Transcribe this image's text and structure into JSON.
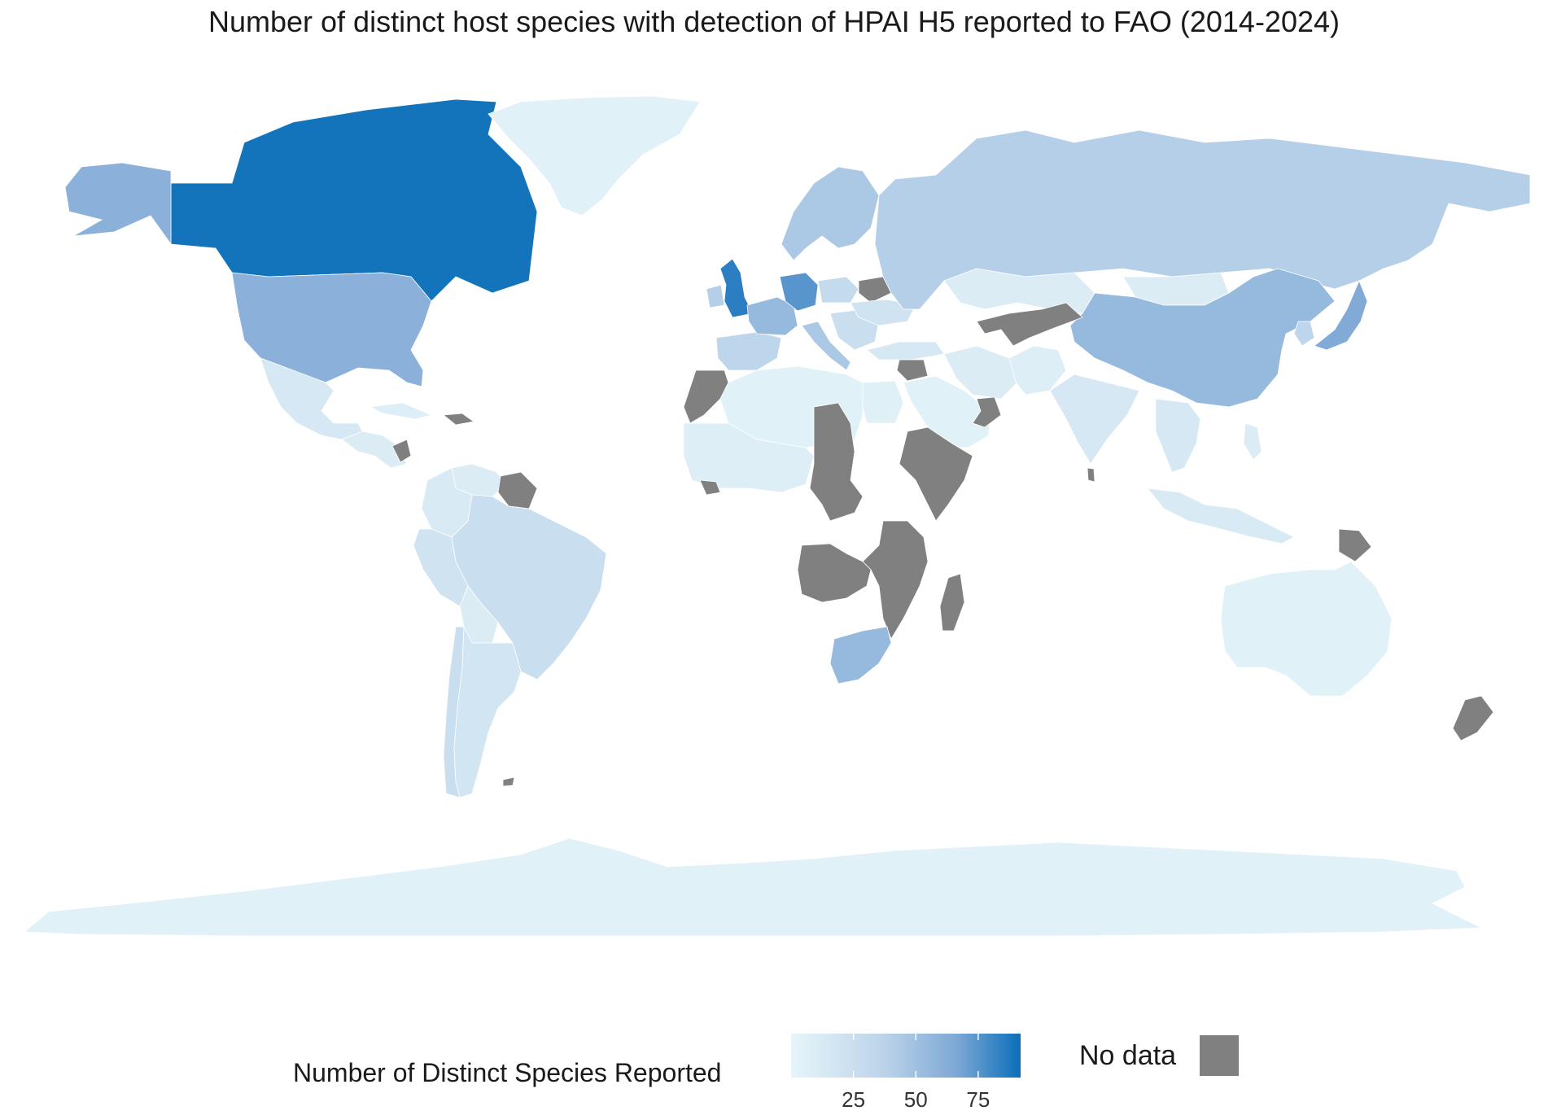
{
  "title": "Number of distinct host species with detection of HPAI H5 reported to FAO (2014-2024)",
  "legend": {
    "title": "Number of Distinct Species Reported",
    "ticks": [
      25,
      50,
      75
    ],
    "range": [
      0,
      92
    ],
    "gradient_colors": [
      "#e6f5f9",
      "#bcd4ea",
      "#7ea8d6",
      "#0a6fb9"
    ],
    "no_data_label": "No data",
    "no_data_color": "#808080"
  },
  "colors": {
    "land_lowest": "#e6f5f9",
    "no_data": "#808080",
    "ocean": "#ffffff"
  },
  "regions": [
    {
      "name": "Canada",
      "value": 90
    },
    {
      "name": "United States",
      "value": 60
    },
    {
      "name": "Alaska",
      "value": 60
    },
    {
      "name": "Greenland",
      "value": 5
    },
    {
      "name": "Mexico",
      "value": 15
    },
    {
      "name": "Central America",
      "value": 10
    },
    {
      "name": "Nicaragua",
      "value": null
    },
    {
      "name": "Cuba",
      "value": 8
    },
    {
      "name": "Haiti / Dominican Republic",
      "value": null
    },
    {
      "name": "Venezuela",
      "value": 10
    },
    {
      "name": "Colombia",
      "value": 12
    },
    {
      "name": "Guyana / Suriname",
      "value": null
    },
    {
      "name": "Peru",
      "value": 20
    },
    {
      "name": "Brazil",
      "value": 25
    },
    {
      "name": "Bolivia",
      "value": 10
    },
    {
      "name": "Chile",
      "value": 25
    },
    {
      "name": "Argentina",
      "value": 18
    },
    {
      "name": "Falkland Islands",
      "value": null
    },
    {
      "name": "United Kingdom",
      "value": 85
    },
    {
      "name": "Ireland",
      "value": 40
    },
    {
      "name": "Spain / Portugal",
      "value": 35
    },
    {
      "name": "France",
      "value": 55
    },
    {
      "name": "Germany",
      "value": 75
    },
    {
      "name": "Scandinavia",
      "value": 45
    },
    {
      "name": "Poland",
      "value": 30
    },
    {
      "name": "Belarus",
      "value": null
    },
    {
      "name": "Italy",
      "value": 45
    },
    {
      "name": "Balkans",
      "value": 25
    },
    {
      "name": "Ukraine",
      "value": 20
    },
    {
      "name": "Russia",
      "value": 40
    },
    {
      "name": "Kazakhstan",
      "value": 10
    },
    {
      "name": "Mongolia",
      "value": 10
    },
    {
      "name": "China",
      "value": 55
    },
    {
      "name": "Japan",
      "value": 65
    },
    {
      "name": "Korea",
      "value": 35
    },
    {
      "name": "Central Asia (Uzbekistan, Turkmenistan, Kyrgyzstan, Tajikistan)",
      "value": null
    },
    {
      "name": "Turkey",
      "value": 15
    },
    {
      "name": "Syria / Lebanon",
      "value": null
    },
    {
      "name": "Iran",
      "value": 10
    },
    {
      "name": "Afghanistan / Pakistan",
      "value": 8
    },
    {
      "name": "India",
      "value": 15
    },
    {
      "name": "Sri Lanka",
      "value": null
    },
    {
      "name": "Saudi Arabia",
      "value": 5
    },
    {
      "name": "Oman / UAE",
      "value": null
    },
    {
      "name": "Southeast Asia",
      "value": 15
    },
    {
      "name": "Indonesia",
      "value": 12
    },
    {
      "name": "Philippines",
      "value": 10
    },
    {
      "name": "Papua New Guinea",
      "value": null
    },
    {
      "name": "Australia",
      "value": 5
    },
    {
      "name": "New Zealand",
      "value": null
    },
    {
      "name": "Morocco / Western Sahara",
      "value": null
    },
    {
      "name": "Algeria / Libya / North Africa",
      "value": 5
    },
    {
      "name": "Egypt",
      "value": 6
    },
    {
      "name": "West Africa",
      "value": 8
    },
    {
      "name": "Sierra Leone / Liberia",
      "value": null
    },
    {
      "name": "Sudan / Central African Republic / DR Congo",
      "value": null
    },
    {
      "name": "Ethiopia / Somalia / Kenya",
      "value": null
    },
    {
      "name": "Tanzania / Zambia / Mozambique / Malawi",
      "value": null
    },
    {
      "name": "Angola / Namibia / Botswana",
      "value": null
    },
    {
      "name": "Madagascar",
      "value": null
    },
    {
      "name": "South Africa",
      "value": 55
    },
    {
      "name": "Antarctica",
      "value": 5
    }
  ]
}
